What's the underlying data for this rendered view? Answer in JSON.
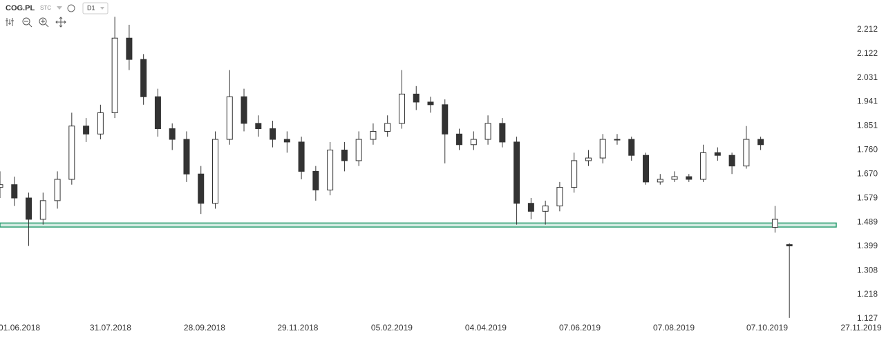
{
  "chart_data": {
    "type": "candlestick",
    "symbol": "COG.PL",
    "source": "STC",
    "interval": "D1",
    "x": [
      0,
      2,
      4,
      6,
      8,
      10,
      12,
      14,
      16,
      18,
      20,
      22,
      24,
      26,
      28,
      30,
      32,
      34,
      36,
      38,
      40,
      42,
      44,
      46,
      48,
      50,
      52,
      54,
      56,
      58,
      60,
      62,
      64,
      66,
      68,
      70,
      72,
      74,
      76,
      78,
      80,
      82,
      84,
      86,
      88,
      90,
      92,
      94,
      96,
      98,
      100,
      102,
      104,
      106,
      108,
      110
    ],
    "open": [
      1.62,
      1.63,
      1.58,
      1.5,
      1.57,
      1.65,
      1.85,
      1.82,
      1.9,
      2.18,
      2.1,
      1.96,
      1.84,
      1.8,
      1.67,
      1.56,
      1.8,
      1.96,
      1.86,
      1.84,
      1.8,
      1.79,
      1.68,
      1.61,
      1.76,
      1.72,
      1.8,
      1.83,
      1.86,
      1.97,
      1.94,
      1.93,
      1.82,
      1.78,
      1.8,
      1.86,
      1.79,
      1.56,
      1.53,
      1.55,
      1.62,
      1.72,
      1.73,
      1.8,
      1.8,
      1.74,
      1.64,
      1.65,
      1.66,
      1.65,
      1.75,
      1.74,
      1.7,
      1.8,
      1.47,
      1.405
    ],
    "high": [
      1.68,
      1.66,
      1.6,
      1.6,
      1.68,
      1.9,
      1.88,
      1.93,
      2.26,
      2.23,
      2.12,
      1.99,
      1.86,
      1.83,
      1.7,
      1.83,
      2.06,
      1.99,
      1.89,
      1.87,
      1.83,
      1.81,
      1.7,
      1.79,
      1.79,
      1.83,
      1.86,
      1.89,
      2.06,
      2.0,
      1.96,
      1.95,
      1.84,
      1.83,
      1.89,
      1.88,
      1.81,
      1.58,
      1.57,
      1.64,
      1.75,
      1.76,
      1.82,
      1.82,
      1.81,
      1.75,
      1.67,
      1.68,
      1.67,
      1.78,
      1.77,
      1.75,
      1.85,
      1.81,
      1.55,
      1.41
    ],
    "low": [
      1.58,
      1.55,
      1.4,
      1.48,
      1.54,
      1.63,
      1.79,
      1.8,
      1.88,
      2.06,
      1.93,
      1.81,
      1.76,
      1.64,
      1.52,
      1.54,
      1.78,
      1.83,
      1.81,
      1.77,
      1.75,
      1.65,
      1.57,
      1.59,
      1.68,
      1.7,
      1.78,
      1.81,
      1.84,
      1.91,
      1.9,
      1.71,
      1.76,
      1.76,
      1.78,
      1.77,
      1.48,
      1.5,
      1.48,
      1.53,
      1.6,
      1.7,
      1.71,
      1.78,
      1.72,
      1.63,
      1.63,
      1.64,
      1.64,
      1.64,
      1.72,
      1.67,
      1.69,
      1.76,
      1.45,
      1.13
    ],
    "close": [
      1.63,
      1.58,
      1.5,
      1.57,
      1.65,
      1.85,
      1.82,
      1.9,
      2.18,
      2.1,
      1.96,
      1.84,
      1.8,
      1.67,
      1.56,
      1.8,
      1.96,
      1.86,
      1.84,
      1.8,
      1.79,
      1.68,
      1.61,
      1.76,
      1.72,
      1.8,
      1.83,
      1.86,
      1.97,
      1.94,
      1.93,
      1.82,
      1.78,
      1.8,
      1.86,
      1.79,
      1.56,
      1.53,
      1.55,
      1.62,
      1.72,
      1.73,
      1.8,
      1.8,
      1.74,
      1.64,
      1.65,
      1.66,
      1.65,
      1.75,
      1.74,
      1.7,
      1.8,
      1.78,
      1.5,
      1.4
    ],
    "up_color": "#ffffff",
    "down_color": "#333333",
    "outline_color": "#333333",
    "support_band": [
      1.471,
      1.486
    ],
    "band_color": "#2a9d70",
    "xlim": [
      0,
      120
    ],
    "xticks": [
      {
        "value": 2.7,
        "label": "01.06.2018"
      },
      {
        "value": 15.4,
        "label": "31.07.2018"
      },
      {
        "value": 28.5,
        "label": "28.09.2018"
      },
      {
        "value": 41.5,
        "label": "29.11.2018"
      },
      {
        "value": 54.6,
        "label": "05.02.2019"
      },
      {
        "value": 67.7,
        "label": "04.04.2019"
      },
      {
        "value": 80.8,
        "label": "07.06.2019"
      },
      {
        "value": 93.9,
        "label": "07.08.2019"
      },
      {
        "value": 106.9,
        "label": "07.10.2019"
      },
      {
        "value": 120,
        "label": "27.11.2019"
      }
    ],
    "ylim": [
      1.127,
      2.323
    ],
    "yticks": [
      2.212,
      2.122,
      2.031,
      1.941,
      1.851,
      {
        "value": 1.76,
        "label": "1.760"
      },
      {
        "value": 1.67,
        "label": "1.670"
      },
      1.579,
      1.489,
      1.399,
      1.308,
      1.218,
      1.127
    ]
  }
}
